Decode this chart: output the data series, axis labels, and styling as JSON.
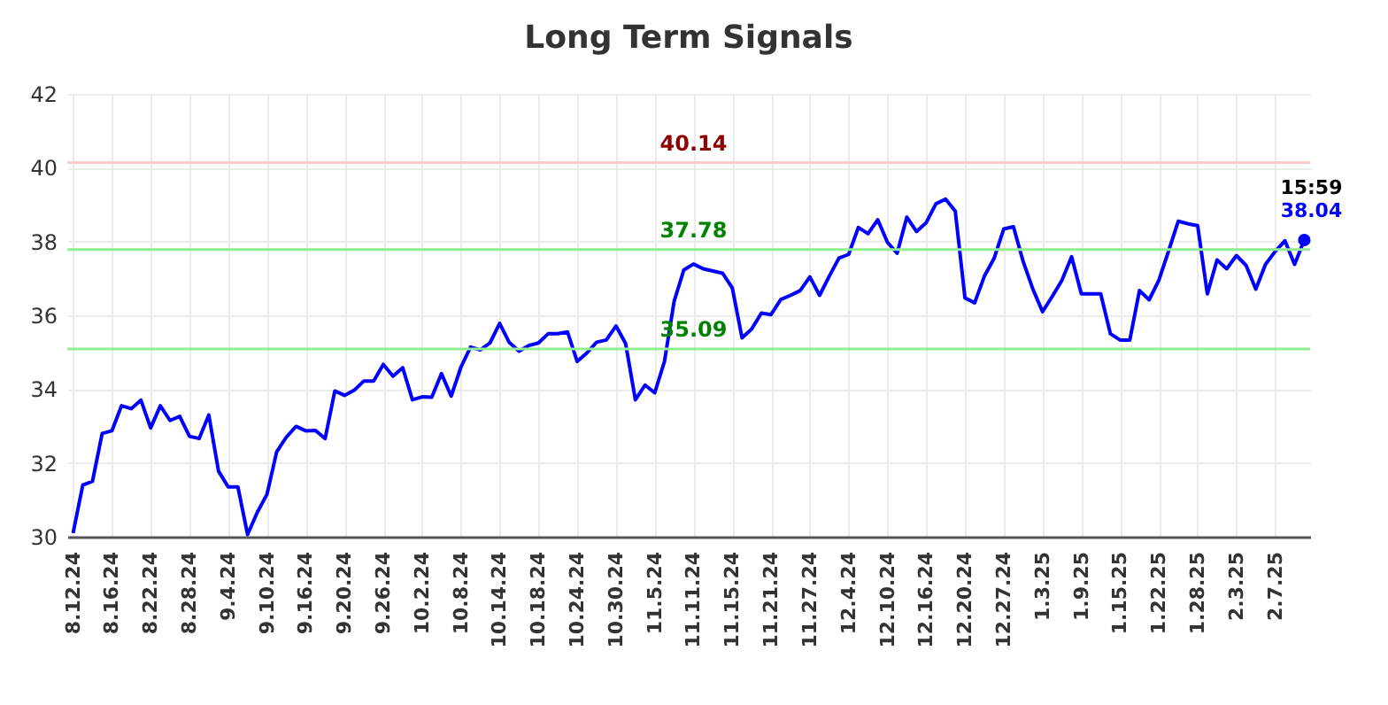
{
  "chart_data": {
    "type": "line",
    "title": "Long Term Signals",
    "categories": [
      "8.12.24",
      null,
      null,
      null,
      "8.16.24",
      null,
      null,
      null,
      "8.22.24",
      null,
      null,
      null,
      "8.28.24",
      null,
      null,
      null,
      "9.4.24",
      null,
      null,
      null,
      "9.10.24",
      null,
      null,
      null,
      "9.16.24",
      null,
      null,
      null,
      "9.20.24",
      null,
      null,
      null,
      "9.26.24",
      null,
      null,
      null,
      "10.2.24",
      null,
      null,
      null,
      "10.8.24",
      null,
      null,
      null,
      "10.14.24",
      null,
      null,
      null,
      "10.18.24",
      null,
      null,
      null,
      "10.24.24",
      null,
      null,
      null,
      "10.30.24",
      null,
      null,
      null,
      "11.5.24",
      null,
      null,
      null,
      "11.11.24",
      null,
      null,
      null,
      "11.15.24",
      null,
      null,
      null,
      "11.21.24",
      null,
      null,
      null,
      "11.27.24",
      null,
      null,
      null,
      "12.4.24",
      null,
      null,
      null,
      "12.10.24",
      null,
      null,
      null,
      "12.16.24",
      null,
      null,
      null,
      "12.20.24",
      null,
      null,
      null,
      "12.27.24",
      null,
      null,
      null,
      "1.3.25",
      null,
      null,
      null,
      "1.9.25",
      null,
      null,
      null,
      "1.15.25",
      null,
      null,
      null,
      "1.22.25",
      null,
      null,
      null,
      "1.28.25",
      null,
      null,
      null,
      "2.3.25",
      null,
      null,
      null,
      "2.7.25",
      null,
      null,
      null
    ],
    "series": [
      {
        "color": "#0000ff",
        "values": [
          30.1,
          31.4,
          31.5,
          32.8,
          32.87,
          33.55,
          33.47,
          33.7,
          32.95,
          33.55,
          33.15,
          33.26,
          32.72,
          32.66,
          33.3,
          31.78,
          31.35,
          31.35,
          30.06,
          30.66,
          31.15,
          32.3,
          32.7,
          32.99,
          32.87,
          32.88,
          32.66,
          33.95,
          33.83,
          33.97,
          34.22,
          34.22,
          34.67,
          34.35,
          34.58,
          33.71,
          33.79,
          33.78,
          34.42,
          33.81,
          34.59,
          35.14,
          35.06,
          35.25,
          35.78,
          35.26,
          35.03,
          35.18,
          35.25,
          35.5,
          35.5,
          35.55,
          34.75,
          34.98,
          35.27,
          35.33,
          35.71,
          35.23,
          33.71,
          34.11,
          33.9,
          34.75,
          36.38,
          37.23,
          37.39,
          37.26,
          37.2,
          37.14,
          36.74,
          35.39,
          35.63,
          36.06,
          36.02,
          36.43,
          36.54,
          36.67,
          37.04,
          36.54,
          37.06,
          37.55,
          37.65,
          38.38,
          38.21,
          38.59,
          37.98,
          37.68,
          38.66,
          38.27,
          38.51,
          39.02,
          39.15,
          38.82,
          36.47,
          36.34,
          37.06,
          37.54,
          38.34,
          38.4,
          37.46,
          36.71,
          36.1,
          36.51,
          36.95,
          37.59,
          36.58,
          36.58,
          36.58,
          35.5,
          35.33,
          35.33,
          36.67,
          36.42,
          36.95,
          37.74,
          38.55,
          38.48,
          38.43,
          36.58,
          37.5,
          37.26,
          37.62,
          37.35,
          36.71,
          37.38,
          37.73,
          38.02,
          37.38,
          38.04
        ],
        "value_labels": [
          null,
          null,
          null,
          null,
          null,
          null,
          null,
          null,
          null,
          null,
          null,
          null,
          null,
          null,
          null,
          null,
          null,
          null,
          null,
          null,
          null,
          null,
          null,
          null,
          null,
          null,
          null,
          null,
          null,
          null,
          null,
          null,
          null,
          null,
          null,
          null,
          null,
          null,
          null,
          null,
          null,
          null,
          null,
          null,
          null,
          null,
          null,
          null,
          null,
          null,
          null,
          null,
          null,
          null,
          null,
          null,
          null,
          null,
          null,
          null,
          null,
          null,
          null,
          null,
          null,
          null,
          null,
          null,
          null,
          null,
          null,
          null,
          null,
          null,
          null,
          null,
          null,
          null,
          null,
          null,
          null,
          null,
          null,
          null,
          null,
          null,
          null,
          null,
          null,
          null,
          null,
          null,
          null,
          null,
          null,
          null,
          null,
          null,
          null,
          null,
          null,
          null,
          null,
          null,
          null,
          null,
          null,
          null,
          null,
          null,
          null,
          null,
          null,
          null,
          null,
          null,
          null,
          null,
          null,
          null,
          null,
          null,
          null,
          null,
          null,
          null,
          null,
          "38.04"
        ]
      }
    ],
    "ylim": [
      30,
      42
    ],
    "yticks": [
      30,
      32,
      34,
      36,
      38,
      40,
      42
    ],
    "grid": true,
    "ref_lines": [
      {
        "axis": "y",
        "value": 40.14,
        "label": "40.14",
        "color": "#ffcccc"
      },
      {
        "axis": "y",
        "value": 37.78,
        "label": "37.78",
        "color": "#90ee90"
      },
      {
        "axis": "y",
        "value": 35.09,
        "label": "35.09",
        "color": "#90ee90"
      }
    ],
    "annotations": [
      {
        "text": "15:59",
        "y": 38.04
      }
    ]
  }
}
